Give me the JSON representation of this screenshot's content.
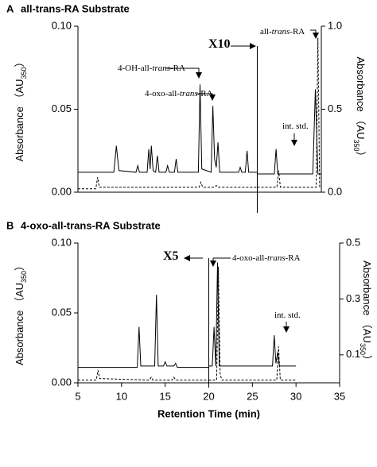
{
  "chart_data": [
    {
      "type": "line",
      "panel": "A",
      "title": "all-trans-RA Substrate",
      "ylabel": [
        "Absorbance （AU",
        "350",
        "）"
      ],
      "y2label": [
        "Absorbance （AU",
        "350",
        "）"
      ],
      "xlim": [
        5,
        33.5
      ],
      "ylim": [
        0,
        0.1
      ],
      "y2lim": [
        0,
        1.0
      ],
      "yticks": [
        {
          "value": 0,
          "label": "0.00"
        },
        {
          "value": 0.05,
          "label": "0.05"
        },
        {
          "value": 0.1,
          "label": "0.10"
        }
      ],
      "y2ticks": [
        {
          "value": 0,
          "label": "0.0"
        },
        {
          "value": 0.5,
          "label": "0.5"
        },
        {
          "value": 1.0,
          "label": "1.0"
        }
      ],
      "series": [
        {
          "axis": "y",
          "dash": false,
          "color": "#000000",
          "x": [
            5,
            9.2,
            9.5,
            9.8,
            11.8,
            12,
            12.2,
            13.1,
            13.3,
            13.45,
            13.6,
            13.8,
            14.1,
            14.3,
            14.5,
            15.3,
            15.5,
            15.7,
            16.3,
            16.5,
            16.7,
            19.1,
            19.3,
            19.5,
            20.6,
            20.8,
            21,
            21.2,
            21.4,
            21.6,
            23.8,
            24,
            24.2,
            24.6,
            24.8,
            25,
            26
          ],
          "values": [
            0.012,
            0.012,
            0.028,
            0.013,
            0.012,
            0.016,
            0.012,
            0.012,
            0.026,
            0.014,
            0.028,
            0.013,
            0.012,
            0.022,
            0.012,
            0.012,
            0.016,
            0.012,
            0.012,
            0.02,
            0.012,
            0.012,
            0.065,
            0.014,
            0.012,
            0.052,
            0.02,
            0.015,
            0.03,
            0.012,
            0.012,
            0.015,
            0.012,
            0.012,
            0.025,
            0.012,
            0.012
          ]
        },
        {
          "axis": "y2",
          "dash": false,
          "color": "#000000",
          "x": [
            26,
            28,
            28.2,
            28.4,
            32.5,
            32.8,
            33.1,
            33.5
          ],
          "values": [
            0.11,
            0.11,
            0.26,
            0.11,
            0.11,
            0.62,
            0.11,
            0.11
          ]
        },
        {
          "axis": "y",
          "dash": true,
          "color": "#000000",
          "x": [
            5,
            7.1,
            7.3,
            7.5,
            19.2,
            19.4,
            19.6,
            21,
            21.2,
            21.4,
            26
          ],
          "values": [
            0.002,
            0.002,
            0.009,
            0.003,
            0.003,
            0.006,
            0.003,
            0.003,
            0.004,
            0.003,
            0.003
          ]
        },
        {
          "axis": "y2",
          "dash": true,
          "color": "#000000",
          "x": [
            26,
            28.3,
            28.5,
            28.7,
            32.9,
            33.1,
            33.3,
            33.5
          ],
          "values": [
            0.03,
            0.03,
            0.13,
            0.03,
            0.03,
            0.93,
            0.03,
            0.03
          ]
        }
      ],
      "annotations": [
        {
          "text": [
            "4-oxo-all-",
            "trans",
            "-RA"
          ]
        },
        {
          "text": [
            "4-OH-all-",
            "trans",
            "-RA"
          ]
        },
        {
          "text": [
            "X10"
          ]
        },
        {
          "text": [
            "all-",
            "trans",
            "-RA"
          ]
        },
        {
          "text": [
            "int. std."
          ]
        }
      ]
    },
    {
      "type": "line",
      "panel": "B",
      "title": "4-oxo-all-trans-RA Substrate",
      "ylabel": [
        "Absorbance （AU",
        "350",
        "）"
      ],
      "y2label": [
        "Absorbance （AU",
        "350",
        "）"
      ],
      "xlabel": "Retention Time (min)",
      "xlim": [
        5,
        35
      ],
      "ylim": [
        0,
        0.1
      ],
      "y2lim": [
        0,
        0.5
      ],
      "xticks": [
        5,
        10,
        15,
        20,
        25,
        30,
        35
      ],
      "yticks": [
        {
          "value": 0,
          "label": "0.00"
        },
        {
          "value": 0.05,
          "label": "0.05"
        },
        {
          "value": 0.1,
          "label": "0.10"
        }
      ],
      "y2ticks": [
        0.1,
        0.3,
        0.5
      ],
      "series": [
        {
          "axis": "y",
          "dash": false,
          "color": "#000000",
          "x": [
            5,
            11.8,
            12,
            12.2,
            13.8,
            14,
            14.2,
            14.8,
            15,
            15.2,
            16,
            16.2,
            16.4,
            20
          ],
          "values": [
            0.011,
            0.011,
            0.04,
            0.012,
            0.012,
            0.063,
            0.012,
            0.012,
            0.015,
            0.012,
            0.012,
            0.014,
            0.011,
            0.011
          ]
        },
        {
          "axis": "y2",
          "dash": false,
          "color": "#000000",
          "x": [
            20,
            20.4,
            20.6,
            20.8,
            21,
            21.2,
            27.3,
            27.5,
            27.7,
            27.9,
            28.1,
            30
          ],
          "values": [
            0.06,
            0.06,
            0.2,
            0.06,
            0.43,
            0.06,
            0.06,
            0.17,
            0.07,
            0.11,
            0.06,
            0.06
          ]
        },
        {
          "axis": "y",
          "dash": true,
          "color": "#000000",
          "x": [
            5,
            7.1,
            7.3,
            7.5,
            13.2,
            13.4,
            13.6,
            15.8,
            16,
            16.2,
            20
          ],
          "values": [
            0.002,
            0.002,
            0.009,
            0.003,
            0.002,
            0.004,
            0.002,
            0.002,
            0.004,
            0.002,
            0.002
          ]
        },
        {
          "axis": "y2",
          "dash": true,
          "color": "#000000",
          "x": [
            20,
            20.9,
            21.1,
            21.3,
            21.5,
            27.8,
            28,
            28.2,
            30
          ],
          "values": [
            0.01,
            0.01,
            0.415,
            0.03,
            0.01,
            0.01,
            0.13,
            0.01,
            0.01
          ]
        }
      ],
      "annotations": [
        {
          "text": [
            "X5"
          ]
        },
        {
          "text": [
            "4-oxo-all-",
            "trans",
            "-RA"
          ]
        },
        {
          "text": [
            "int. std."
          ]
        }
      ]
    }
  ]
}
